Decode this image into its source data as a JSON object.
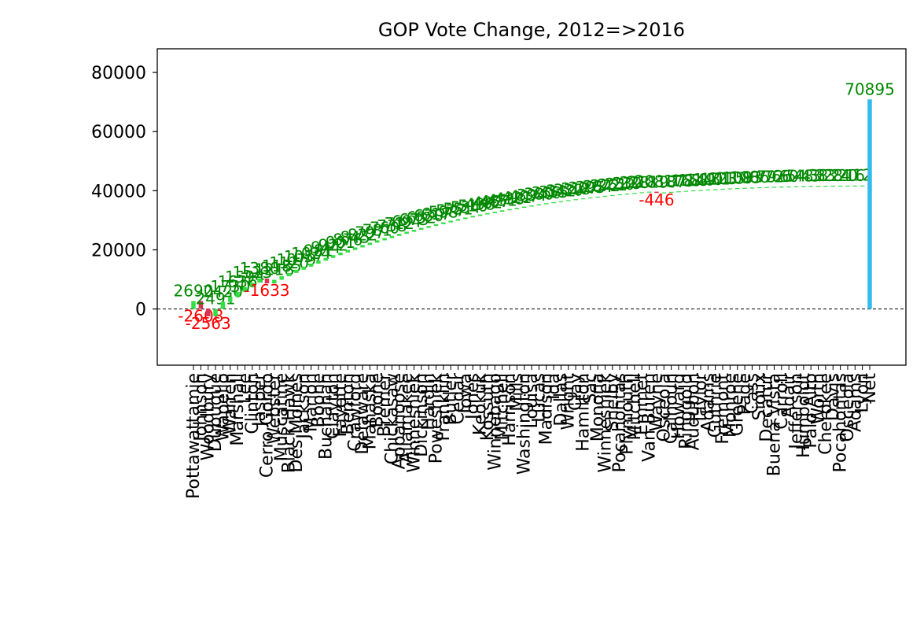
{
  "chart_data": {
    "type": "bar",
    "title": "GOP Vote Change, 2012=>2016",
    "xlabel": "",
    "ylabel": "",
    "ylim": [
      -19000,
      88000
    ],
    "y_ticks": [
      0,
      20000,
      40000,
      60000,
      80000
    ],
    "zero_line": "dashed",
    "grid": false,
    "legend": "none",
    "colors": {
      "increase": "#33dd44",
      "decrease": "#dd3355",
      "total": "#33bbee",
      "increase_label": "#008800",
      "decrease_label": "#ff0000"
    },
    "categories": [
      "Pottawattamie",
      "Johnson",
      "Woodbury",
      "Dubuque",
      "Wapello",
      "Warren",
      "Marshall",
      "Lee",
      "Clinton",
      "Jasper",
      "Cerro Gordo",
      "Webster",
      "Muscatine",
      "Black Hawk",
      "Des Moines",
      "Jackson",
      "Marion",
      "Boone",
      "Buchanan",
      "Clayton",
      "Fayette",
      "Benton",
      "Crawford",
      "Delaware",
      "Mahaska",
      "Boone",
      "Bremer",
      "Chickasaw",
      "Appanoose",
      "Allamakee",
      "Winneshiek",
      "Dickinson",
      "Hardin",
      "Poweshiek",
      "Franklin",
      "Butler",
      "Cedar",
      "Iowa",
      "Jones",
      "Keokuk",
      "Kossuth",
      "Winnebago",
      "Mitchell",
      "Harrison",
      "Mills",
      "Washington",
      "Louisa",
      "Lucas",
      "Madison",
      "Ida",
      "Dallas",
      "Wright",
      "Clay",
      "Hamilton",
      "Sac",
      "Monona",
      "Winneshiek",
      "Shelby",
      "Pocahontas",
      "Plymouth",
      "Mitchell",
      "Emmet",
      "Van Buren",
      "Wayne",
      "Osceola",
      "Calhoun",
      "Howard",
      "Ringgold",
      "Audubon",
      "Taylor",
      "Adams",
      "Guthrie",
      "Fremont",
      "Monroe",
      "Greene",
      "Page",
      "Cass",
      "Sioux",
      "Decatur",
      "Buena Vista",
      "Carroll",
      "Adair",
      "Jefferson",
      "Humboldt",
      "Palo Alto",
      "Worth",
      "Cherokee",
      "Davis",
      "Pocahontas",
      "Osceola",
      "Adams",
      "Lyon",
      "Net"
    ],
    "values": [
      2690,
      -2608,
      -2563,
      2491,
      2420,
      1730,
      1636,
      1594,
      1523,
      1380,
      -1633,
      1218,
      1185,
      1120,
      1079,
      1057,
      1024,
      981,
      944,
      922,
      901,
      876,
      845,
      822,
      797,
      781,
      760,
      738,
      712,
      694,
      673,
      652,
      630,
      617,
      598,
      577,
      551,
      534,
      516,
      498,
      482,
      467,
      451,
      438,
      421,
      407,
      394,
      380,
      366,
      355,
      342,
      330,
      318,
      307,
      295,
      284,
      272,
      261,
      250,
      239,
      228,
      218,
      208,
      -446,
      197,
      187,
      178,
      168,
      158,
      149,
      140,
      131,
      123,
      115,
      108,
      100,
      93,
      86,
      79,
      72,
      66,
      60,
      54,
      48,
      43,
      38,
      33,
      28,
      24,
      20,
      16,
      12,
      70895
    ],
    "data_labels": [
      "2690",
      "-2608",
      "-2563",
      "2491",
      "2420",
      "1730",
      "1636",
      "1594",
      "1523",
      "1380",
      "-1633",
      "1218",
      "1185",
      "1120",
      "1079",
      "1057",
      "1024",
      "981",
      "944",
      "922",
      "901",
      "876",
      "845",
      "822",
      "797",
      "781",
      "760",
      "738",
      "712",
      "694",
      "673",
      "652",
      "630",
      "617",
      "598",
      "577",
      "551",
      "534",
      "516",
      "498",
      "482",
      "467",
      "451",
      "438",
      "421",
      "407",
      "394",
      "380",
      "366",
      "355",
      "342",
      "330",
      "318",
      "307",
      "295",
      "284",
      "272",
      "261",
      "250",
      "239",
      "228",
      "218",
      "208",
      "-446",
      "197",
      "187",
      "178",
      "168",
      "158",
      "149",
      "140",
      "131",
      "123",
      "115",
      "108",
      "100",
      "93",
      "86",
      "79",
      "72",
      "66",
      "60",
      "54",
      "48",
      "43",
      "38",
      "33",
      "28",
      "24",
      "20",
      "16",
      "12",
      "70895"
    ]
  }
}
